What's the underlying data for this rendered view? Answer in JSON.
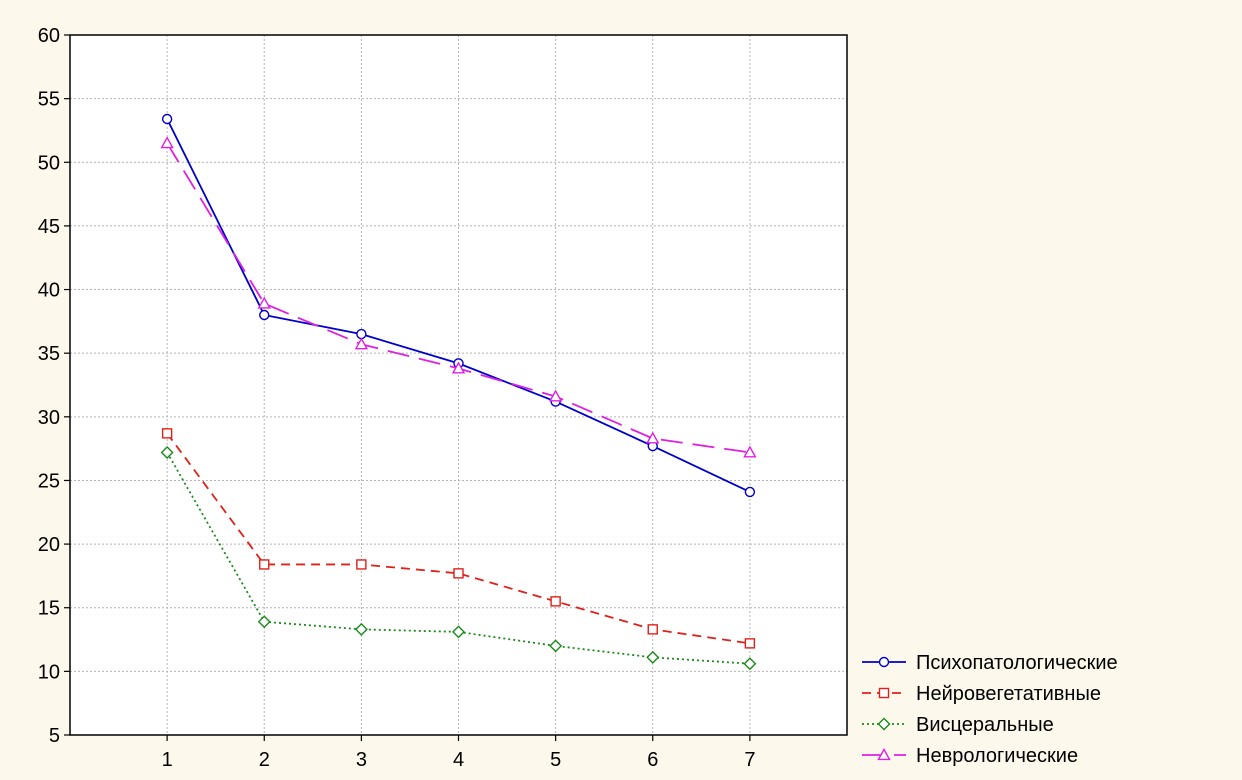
{
  "chart_data": {
    "type": "line",
    "x": [
      1,
      2,
      3,
      4,
      5,
      6,
      7
    ],
    "xlim": [
      0,
      8
    ],
    "ylim": [
      5,
      60
    ],
    "x_ticks": [
      "1",
      "2",
      "3",
      "4",
      "5",
      "6",
      "7"
    ],
    "y_ticks": [
      "5",
      "10",
      "15",
      "20",
      "25",
      "30",
      "35",
      "40",
      "45",
      "50",
      "55",
      "60"
    ],
    "grid": true,
    "legend_position": "bottom-right",
    "series": [
      {
        "name": "Психопатологические",
        "values": [
          53.4,
          38.0,
          36.5,
          34.2,
          31.2,
          27.7,
          24.1
        ],
        "color": "#0000cc",
        "line_style": "solid",
        "marker": "circle"
      },
      {
        "name": "Нейровегетативные",
        "values": [
          28.7,
          18.4,
          18.4,
          17.7,
          15.5,
          13.3,
          12.2
        ],
        "color": "#e0201a",
        "line_style": "dashed",
        "marker": "square"
      },
      {
        "name": "Висцеральные",
        "values": [
          27.2,
          13.9,
          13.3,
          13.1,
          12.0,
          11.1,
          10.6
        ],
        "color": "#1a8a1a",
        "line_style": "dotted",
        "marker": "diamond"
      },
      {
        "name": "Неврологические",
        "values": [
          51.5,
          38.9,
          35.7,
          33.8,
          31.6,
          28.3,
          27.2
        ],
        "color": "#e020e0",
        "line_style": "long-dash",
        "marker": "triangle"
      }
    ]
  }
}
